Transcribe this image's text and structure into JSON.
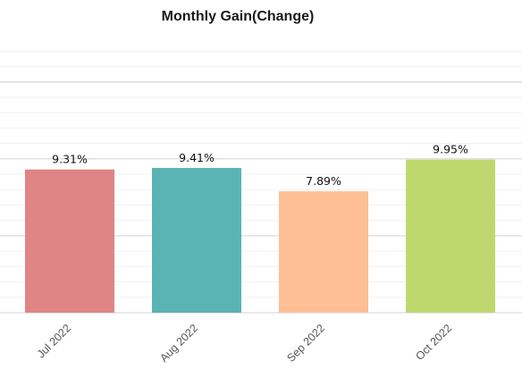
{
  "chart_data": {
    "type": "bar",
    "title": "Monthly Gain(Change)",
    "categories": [
      "Jul 2022",
      "Aug 2022",
      "Sep 2022",
      "Oct 2022"
    ],
    "values": [
      9.31,
      9.41,
      7.89,
      9.95
    ],
    "value_labels": [
      "9.31%",
      "9.41%",
      "7.89%",
      "9.95%"
    ],
    "colors": [
      "#e08585",
      "#5ab4b4",
      "#ffbf94",
      "#bfd86e"
    ],
    "xlabel": "",
    "ylabel": "",
    "ylim": [
      0,
      18
    ],
    "y_unit": "%",
    "grid": true,
    "legend": "none"
  }
}
